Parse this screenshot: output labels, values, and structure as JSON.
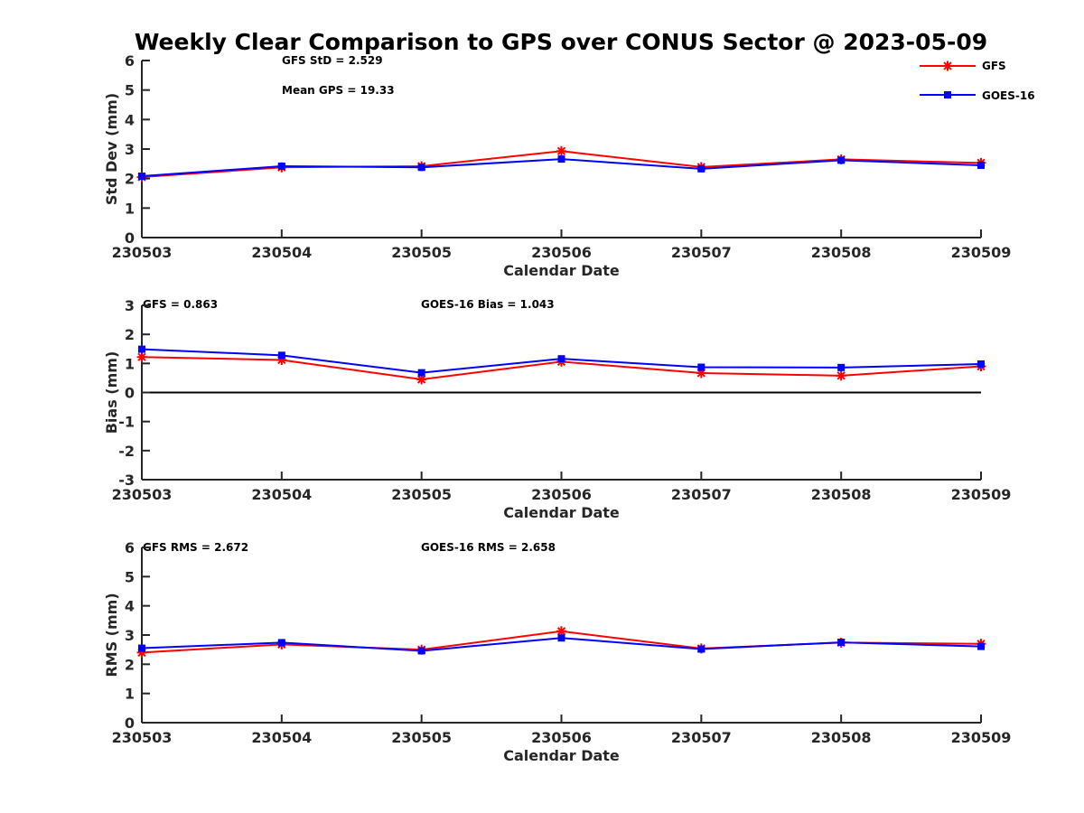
{
  "figure": {
    "title": "Weekly Clear Comparison to GPS over CONUS Sector @ 2023-05-09"
  },
  "colors": {
    "gfs": "#ff0000",
    "goes16": "#0000ff",
    "axis": "#262626",
    "zero_line": "#000000"
  },
  "chart_data": [
    {
      "type": "line",
      "categories": [
        "230503",
        "230504",
        "230505",
        "230506",
        "230507",
        "230508",
        "230509"
      ],
      "xlabel": "Calendar Date",
      "ylabel": "Std Dev (mm)",
      "ylim": [
        0,
        6
      ],
      "yticks": [
        "0",
        "1",
        "2",
        "3",
        "4",
        "5",
        "6"
      ],
      "grid": false,
      "annotations": [
        "GFS StD = 2.529",
        "Mean GPS = 19.33"
      ],
      "legend": {
        "placement": "top-right",
        "entries": [
          "GFS",
          "GOES-16"
        ]
      },
      "series": [
        {
          "name": "GFS",
          "marker": "asterisk",
          "color": "#ff0000",
          "values": [
            2.05,
            2.38,
            2.42,
            2.93,
            2.39,
            2.65,
            2.53
          ]
        },
        {
          "name": "GOES-16",
          "marker": "square",
          "color": "#0000ff",
          "values": [
            2.08,
            2.42,
            2.38,
            2.66,
            2.33,
            2.62,
            2.45
          ]
        }
      ]
    },
    {
      "type": "line",
      "categories": [
        "230503",
        "230504",
        "230505",
        "230506",
        "230507",
        "230508",
        "230509"
      ],
      "xlabel": "Calendar Date",
      "ylabel": "Bias (mm)",
      "ylim": [
        -3,
        3
      ],
      "yticks": [
        "-3",
        "-2",
        "-1",
        "0",
        "1",
        "2",
        "3"
      ],
      "grid": false,
      "zero_line": true,
      "annotations": [
        "GFS = 0.863",
        "GOES-16 Bias  = 1.043"
      ],
      "series": [
        {
          "name": "GFS",
          "marker": "asterisk",
          "color": "#ff0000",
          "values": [
            1.22,
            1.12,
            0.45,
            1.06,
            0.67,
            0.58,
            0.9
          ]
        },
        {
          "name": "GOES-16",
          "marker": "square",
          "color": "#0000ff",
          "values": [
            1.49,
            1.28,
            0.68,
            1.16,
            0.87,
            0.86,
            0.98
          ]
        }
      ]
    },
    {
      "type": "line",
      "categories": [
        "230503",
        "230504",
        "230505",
        "230506",
        "230507",
        "230508",
        "230509"
      ],
      "xlabel": "Calendar Date",
      "ylabel": "RMS (mm)",
      "ylim": [
        0,
        6
      ],
      "yticks": [
        "0",
        "1",
        "2",
        "3",
        "4",
        "5",
        "6"
      ],
      "grid": false,
      "annotations": [
        "GFS RMS = 2.672",
        "GOES-16 RMS = 2.658"
      ],
      "series": [
        {
          "name": "GFS",
          "marker": "asterisk",
          "color": "#ff0000",
          "values": [
            2.4,
            2.68,
            2.5,
            3.13,
            2.54,
            2.74,
            2.7
          ]
        },
        {
          "name": "GOES-16",
          "marker": "square",
          "color": "#0000ff",
          "values": [
            2.55,
            2.74,
            2.46,
            2.9,
            2.52,
            2.75,
            2.61
          ]
        }
      ]
    }
  ]
}
